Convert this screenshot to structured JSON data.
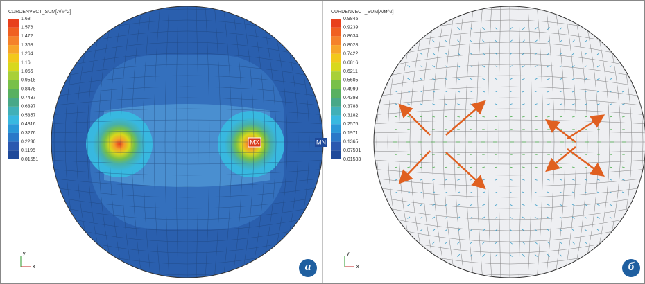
{
  "panels": [
    {
      "legend": {
        "title": "CURDENVECT_SUM[A/м^2]",
        "labels": [
          "1.68",
          "1.576",
          "1.472",
          "1.368",
          "1.264",
          "1.16",
          "1.056",
          "0.9518",
          "0.8478",
          "0.7437",
          "0.6397",
          "0.5357",
          "0.4316",
          "0.3276",
          "0.2236",
          "0.1195",
          "0.01551"
        ]
      },
      "max_marker": "MX",
      "min_marker": "MN",
      "axis_y": "y",
      "axis_x": "x",
      "label": "а"
    },
    {
      "legend": {
        "title": "CURDENVECT_SUM[A/м^2]",
        "labels": [
          "0.9845",
          "0.9239",
          "0.8634",
          "0.8028",
          "0.7422",
          "0.6816",
          "0.6211",
          "0.5605",
          "0.4999",
          "0.4393",
          "0.3788",
          "0.3182",
          "0.2576",
          "0.1971",
          "0.1365",
          "0.07591",
          "0.01533"
        ]
      },
      "axis_y": "y",
      "axis_x": "x",
      "label": "б"
    }
  ]
}
